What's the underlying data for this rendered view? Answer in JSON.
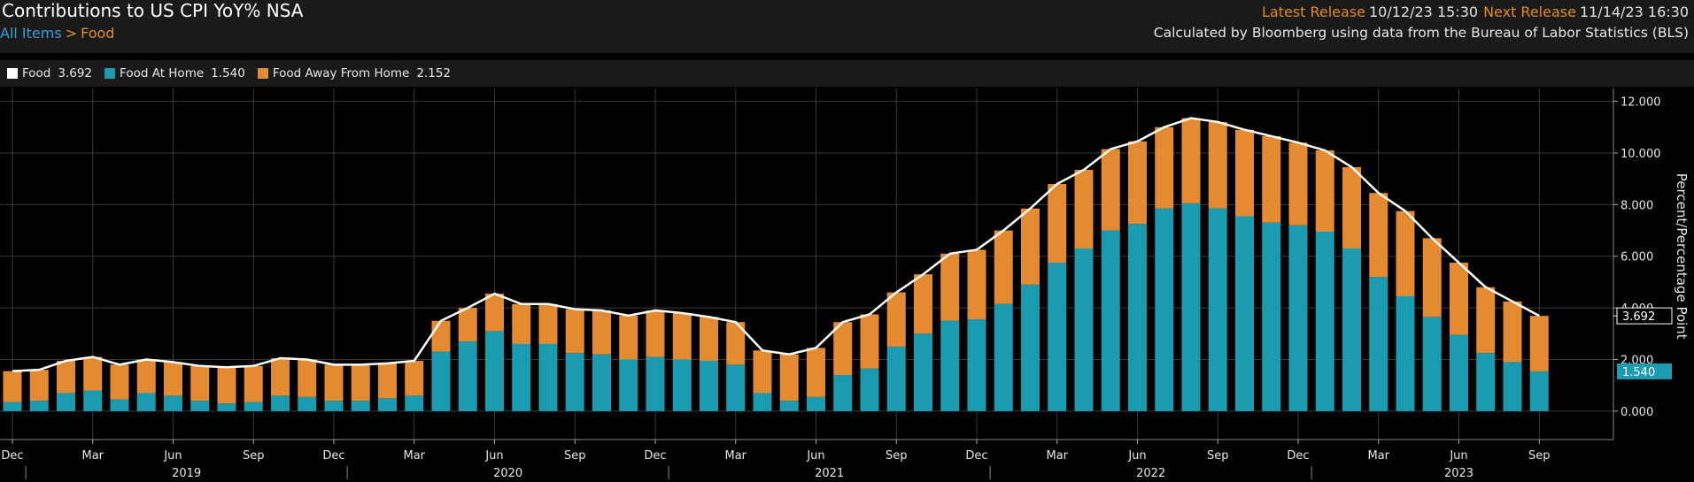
{
  "header": {
    "title": "Contributions to US CPI YoY% NSA",
    "breadcrumb_root": "All Items",
    "breadcrumb_sep": ">",
    "breadcrumb_current": "Food",
    "latest_release_label": "Latest Release",
    "latest_release_value": "10/12/23 15:30",
    "next_release_label": "Next Release",
    "next_release_value": "11/14/23 16:30",
    "source": "Calculated by Bloomberg using data from the Bureau of Labor Statistics (BLS)"
  },
  "legend": [
    {
      "name": "Food",
      "value": "3.692",
      "color": "#ffffff"
    },
    {
      "name": "Food At Home",
      "value": "1.540",
      "color": "#1a9bb0"
    },
    {
      "name": "Food Away From Home",
      "value": "2.152",
      "color": "#e48a30"
    }
  ],
  "chart_data": {
    "type": "bar",
    "stacked": true,
    "ylabel": "Percent/Percentage Point",
    "ylim": [
      -1.1,
      12.5
    ],
    "yticks": [
      0,
      2,
      4,
      6,
      8,
      10,
      12
    ],
    "ytick_labels": [
      "0.000",
      "2.000",
      "4.000",
      "6.000",
      "8.000",
      "10.000",
      "12.000"
    ],
    "month_ticks": [
      "Dec",
      "Mar",
      "Jun",
      "Sep",
      "Dec",
      "Mar",
      "Jun",
      "Sep",
      "Dec",
      "Mar",
      "Jun",
      "Sep",
      "Dec",
      "Mar",
      "Jun",
      "Sep",
      "Dec",
      "Mar",
      "Jun",
      "Sep"
    ],
    "year_labels": [
      "2019",
      "2020",
      "2021",
      "2022",
      "2023"
    ],
    "grid": true,
    "legend_position": "top-left",
    "last_value_labels": {
      "Food": "3.692",
      "Food At Home": "1.540"
    },
    "categories": [
      "Dec 2018",
      "Jan 2019",
      "Feb 2019",
      "Mar 2019",
      "Apr 2019",
      "May 2019",
      "Jun 2019",
      "Jul 2019",
      "Aug 2019",
      "Sep 2019",
      "Oct 2019",
      "Nov 2019",
      "Dec 2019",
      "Jan 2020",
      "Feb 2020",
      "Mar 2020",
      "Apr 2020",
      "May 2020",
      "Jun 2020",
      "Jul 2020",
      "Aug 2020",
      "Sep 2020",
      "Oct 2020",
      "Nov 2020",
      "Dec 2020",
      "Jan 2021",
      "Feb 2021",
      "Mar 2021",
      "Apr 2021",
      "May 2021",
      "Jun 2021",
      "Jul 2021",
      "Aug 2021",
      "Sep 2021",
      "Oct 2021",
      "Nov 2021",
      "Dec 2021",
      "Jan 2022",
      "Feb 2022",
      "Mar 2022",
      "Apr 2022",
      "May 2022",
      "Jun 2022",
      "Jul 2022",
      "Aug 2022",
      "Sep 2022",
      "Oct 2022",
      "Nov 2022",
      "Dec 2022",
      "Jan 2023",
      "Feb 2023",
      "Mar 2023",
      "Apr 2023",
      "May 2023",
      "Jun 2023",
      "Jul 2023",
      "Aug 2023",
      "Sep 2023"
    ],
    "series": [
      {
        "name": "Food At Home",
        "color": "#1a9bb0",
        "values": [
          0.35,
          0.4,
          0.7,
          0.8,
          0.45,
          0.7,
          0.6,
          0.4,
          0.3,
          0.35,
          0.6,
          0.55,
          0.4,
          0.4,
          0.5,
          0.6,
          2.3,
          2.7,
          3.1,
          2.6,
          2.6,
          2.25,
          2.2,
          2.0,
          2.1,
          2.0,
          1.95,
          1.8,
          0.7,
          0.4,
          0.55,
          1.4,
          1.65,
          2.5,
          3.0,
          3.5,
          3.55,
          4.15,
          4.9,
          5.75,
          6.3,
          7.0,
          7.25,
          7.85,
          8.05,
          7.85,
          7.55,
          7.3,
          7.2,
          6.95,
          6.3,
          5.2,
          4.45,
          3.65,
          2.95,
          2.25,
          1.9,
          1.54
        ]
      },
      {
        "name": "Food Away From Home",
        "color": "#e48a30",
        "values": [
          1.2,
          1.2,
          1.25,
          1.3,
          1.35,
          1.3,
          1.3,
          1.35,
          1.4,
          1.4,
          1.45,
          1.45,
          1.4,
          1.4,
          1.35,
          1.35,
          1.2,
          1.3,
          1.45,
          1.55,
          1.55,
          1.7,
          1.7,
          1.7,
          1.8,
          1.8,
          1.7,
          1.65,
          1.65,
          1.8,
          1.9,
          2.05,
          2.1,
          2.1,
          2.3,
          2.6,
          2.7,
          2.85,
          2.95,
          3.05,
          3.05,
          3.15,
          3.2,
          3.15,
          3.3,
          3.35,
          3.35,
          3.35,
          3.2,
          3.15,
          3.15,
          3.25,
          3.3,
          3.05,
          2.8,
          2.55,
          2.35,
          2.152
        ]
      },
      {
        "name": "Food",
        "color": "#ffffff",
        "type": "line",
        "values": [
          1.55,
          1.6,
          1.95,
          2.1,
          1.8,
          2.0,
          1.9,
          1.75,
          1.7,
          1.75,
          2.05,
          2.0,
          1.8,
          1.8,
          1.85,
          1.95,
          3.5,
          4.0,
          4.55,
          4.15,
          4.15,
          3.95,
          3.9,
          3.7,
          3.9,
          3.8,
          3.65,
          3.45,
          2.35,
          2.2,
          2.45,
          3.45,
          3.75,
          4.6,
          5.3,
          6.1,
          6.25,
          7.0,
          7.85,
          8.8,
          9.35,
          10.15,
          10.45,
          11.0,
          11.35,
          11.2,
          10.9,
          10.65,
          10.4,
          10.1,
          9.45,
          8.45,
          7.75,
          6.7,
          5.75,
          4.8,
          4.25,
          3.692
        ]
      }
    ]
  }
}
